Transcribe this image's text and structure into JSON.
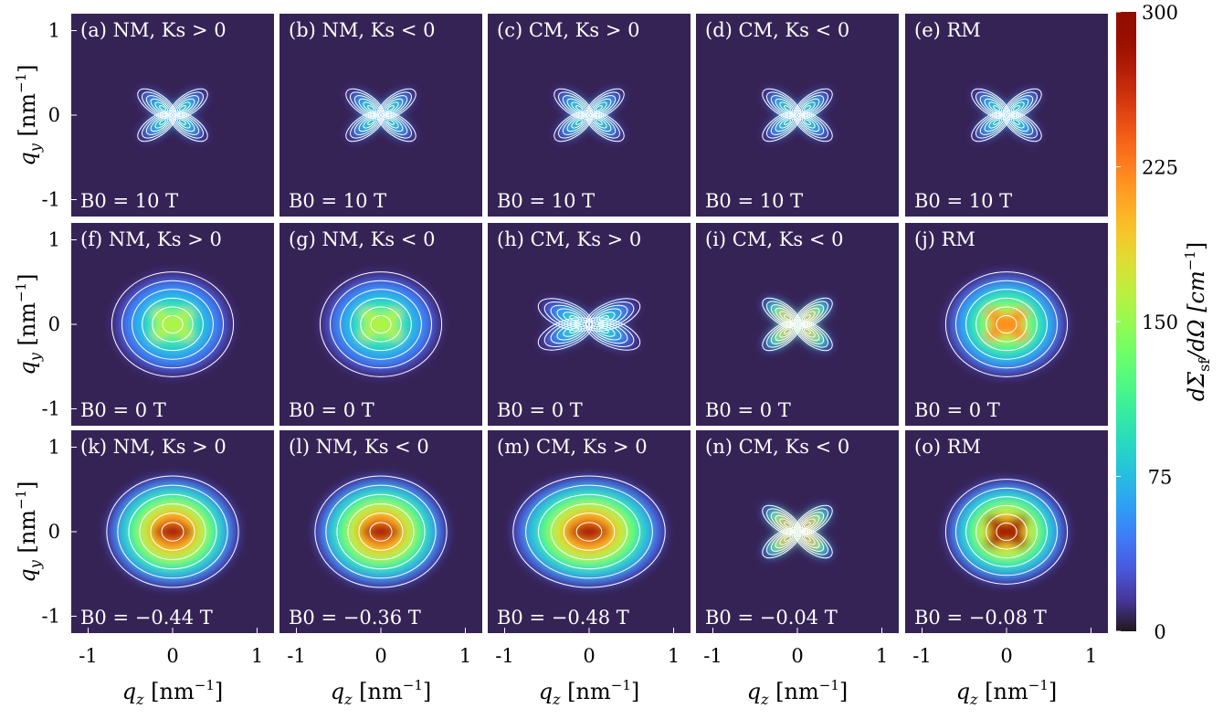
{
  "chart_data": {
    "type": "heatmap",
    "description_grid": "3 rows x 5 columns of 2D maps",
    "x_axis": {
      "label": "q_z [nm^-1]",
      "ticks": [
        -1,
        0,
        1
      ],
      "range": [
        -1.2,
        1.2
      ]
    },
    "y_axis": {
      "label": "q_y [nm^-1]",
      "ticks": [
        1,
        0,
        -1
      ],
      "range": [
        -1.2,
        1.2
      ]
    },
    "colorbar": {
      "label": "dΣsf/dΩ [cm^-1]",
      "ticks": [
        300,
        225,
        150,
        75,
        0
      ],
      "range": [
        0,
        300
      ],
      "colormap": "turbo"
    },
    "panels": [
      {
        "label": "(a) NM, Ks > 0",
        "field": "B0 = 10 T",
        "peak": 130,
        "shape": "clover"
      },
      {
        "label": "(b) NM, Ks < 0",
        "field": "B0 = 10 T",
        "peak": 130,
        "shape": "clover"
      },
      {
        "label": "(c) CM, Ks > 0",
        "field": "B0 = 10 T",
        "peak": 130,
        "shape": "clover"
      },
      {
        "label": "(d) CM, Ks < 0",
        "field": "B0 = 10 T",
        "peak": 130,
        "shape": "clover"
      },
      {
        "label": "(e) RM",
        "field": "B0 = 10 T",
        "peak": 130,
        "shape": "clover"
      },
      {
        "label": "(f) NM, Ks > 0",
        "field": "B0 = 0 T",
        "peak": 160,
        "shape": "butterfly"
      },
      {
        "label": "(g) NM, Ks < 0",
        "field": "B0 = 0 T",
        "peak": 160,
        "shape": "butterfly"
      },
      {
        "label": "(h) CM, Ks > 0",
        "field": "B0 = 0 T",
        "peak": 120,
        "shape": "clover"
      },
      {
        "label": "(i) CM, Ks < 0",
        "field": "B0 = 0 T",
        "peak": 270,
        "shape": "clover"
      },
      {
        "label": "(j) RM",
        "field": "B0 = 0 T",
        "peak": 220,
        "shape": "butterfly"
      },
      {
        "label": "(k) NM, Ks > 0",
        "field": "B0 = −0.44 T",
        "peak": 300,
        "shape": "dumbbell"
      },
      {
        "label": "(l) NM, Ks < 0",
        "field": "B0 = −0.36 T",
        "peak": 300,
        "shape": "dumbbell"
      },
      {
        "label": "(m) CM, Ks > 0",
        "field": "B0 = −0.48 T",
        "peak": 300,
        "shape": "dumbbell"
      },
      {
        "label": "(n) CM, Ks < 0",
        "field": "B0 = −0.04 T",
        "peak": 300,
        "shape": "clover"
      },
      {
        "label": "(o) RM",
        "field": "B0 = −0.08 T",
        "peak": 280,
        "shape": "butterfly"
      }
    ]
  },
  "text": {
    "xlabel_text": "q",
    "xlabel_sub": "z",
    "xlabel_unit": "[nm",
    "xlabel_unit_end": "]",
    "unit_exp": "−1",
    "ylabel_text": "q",
    "ylabel_sub": "y",
    "cb_label_main": "dΣ",
    "cb_label_sub": "sf",
    "cb_label_rest": "/dΩ  [cm",
    "cb_label_end": "]",
    "cb_label_exp": "−1"
  }
}
